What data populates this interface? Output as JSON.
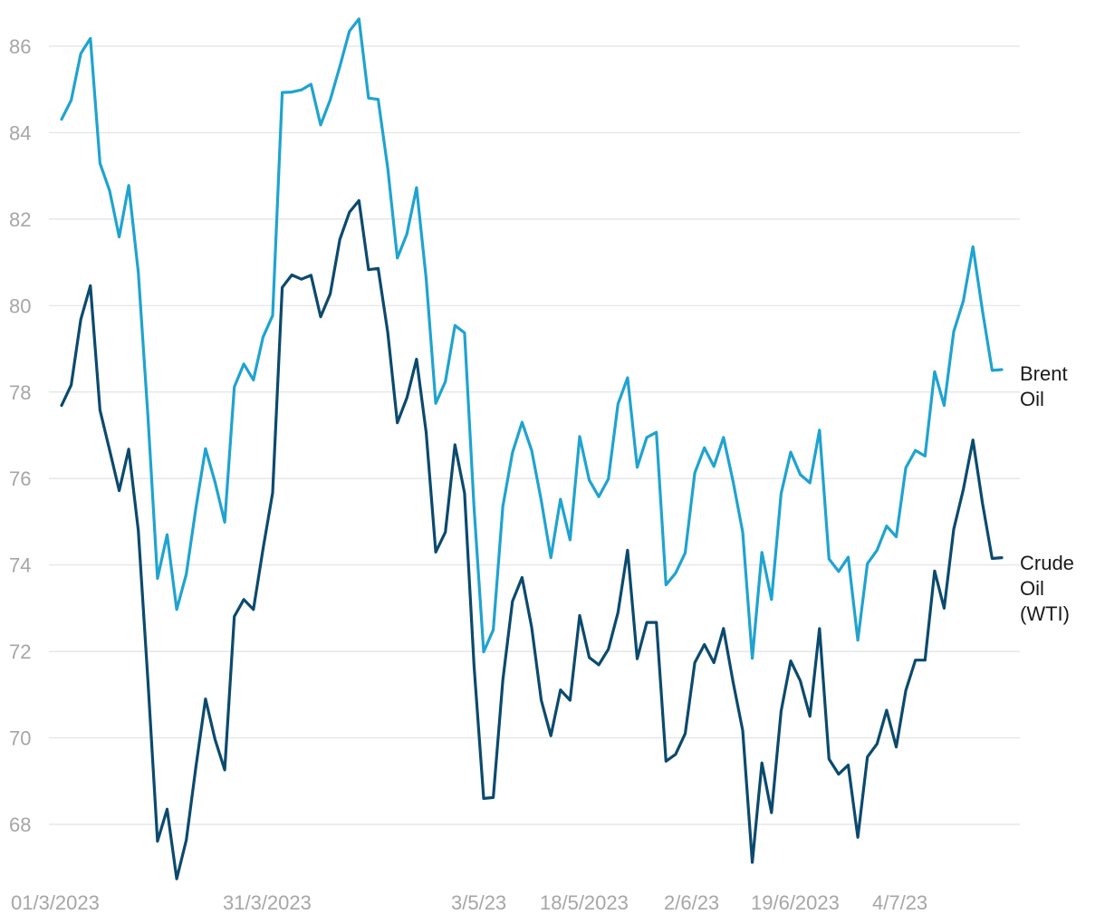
{
  "chart_data": {
    "type": "line",
    "title": "",
    "xlabel": "",
    "ylabel": "",
    "ylim": [
      66.5,
      86.8
    ],
    "yticks": [
      68,
      70,
      72,
      74,
      76,
      78,
      80,
      82,
      84,
      86
    ],
    "grid": true,
    "x_tick_labels": [
      "01/3/2023",
      "31/3/2023",
      "3/5/23",
      "18/5/2023",
      "2/6/23",
      "19/6/2023",
      "4/7/23"
    ],
    "series": [
      {
        "name": "Brent Oil",
        "label_lines": [
          "Brent",
          "Oil"
        ],
        "color": "#1fa3d0",
        "values": [
          84.31,
          84.75,
          85.83,
          86.18,
          83.29,
          82.66,
          81.59,
          82.78,
          80.77,
          77.45,
          73.69,
          74.7,
          72.97,
          73.79,
          75.32,
          76.69,
          75.91,
          74.99,
          78.12,
          78.65,
          78.28,
          79.27,
          79.77,
          84.93,
          84.94,
          84.99,
          85.12,
          84.18,
          84.76,
          85.53,
          86.35,
          86.63,
          84.8,
          84.77,
          83.18,
          81.1,
          81.66,
          82.73,
          80.63,
          77.74,
          78.24,
          79.54,
          79.37,
          75.32,
          71.99,
          72.5,
          75.36,
          76.6,
          77.3,
          76.65,
          75.49,
          74.17,
          75.52,
          74.58,
          76.97,
          75.96,
          75.58,
          75.99,
          77.72,
          78.33,
          76.26,
          76.95,
          77.07,
          73.54,
          73.81,
          74.28,
          76.13,
          76.71,
          76.28,
          76.95,
          75.93,
          74.76,
          71.84,
          74.29,
          73.2,
          75.65,
          76.61,
          76.09,
          75.9,
          77.12,
          74.14,
          73.85,
          74.18,
          72.26,
          74.03,
          74.34,
          74.9,
          74.65,
          76.25,
          76.65,
          76.52,
          78.47,
          77.69,
          79.4,
          80.11,
          81.36,
          79.87,
          78.5,
          78.52
        ]
      },
      {
        "name": "Crude Oil (WTI)",
        "label_lines": [
          "Crude",
          "Oil",
          "(WTI)"
        ],
        "color": "#0b4a6e",
        "values": [
          77.69,
          78.16,
          79.68,
          80.46,
          77.58,
          76.66,
          75.72,
          76.68,
          74.8,
          71.33,
          67.61,
          68.35,
          66.74,
          67.64,
          69.33,
          70.9,
          69.96,
          69.26,
          72.81,
          73.2,
          72.97,
          74.37,
          75.67,
          80.42,
          80.71,
          80.61,
          80.7,
          79.74,
          80.27,
          81.53,
          82.16,
          82.43,
          80.83,
          80.86,
          79.38,
          77.29,
          77.87,
          78.76,
          77.07,
          74.3,
          74.76,
          76.78,
          75.66,
          71.66,
          68.6,
          68.62,
          71.34,
          73.16,
          73.71,
          72.56,
          70.87,
          70.05,
          71.11,
          70.87,
          72.83,
          71.86,
          71.69,
          72.05,
          72.9,
          74.34,
          71.83,
          72.67,
          72.67,
          69.46,
          69.62,
          70.1,
          71.74,
          72.16,
          71.74,
          72.53,
          71.29,
          70.17,
          67.12,
          69.42,
          68.27,
          70.62,
          71.78,
          71.32,
          70.5,
          72.53,
          69.51,
          69.16,
          69.37,
          67.7,
          69.56,
          69.86,
          70.64,
          69.79,
          71.1,
          71.8,
          71.8,
          73.86,
          73.0,
          74.83,
          75.75,
          76.89,
          75.42,
          74.15,
          74.17
        ]
      }
    ]
  }
}
